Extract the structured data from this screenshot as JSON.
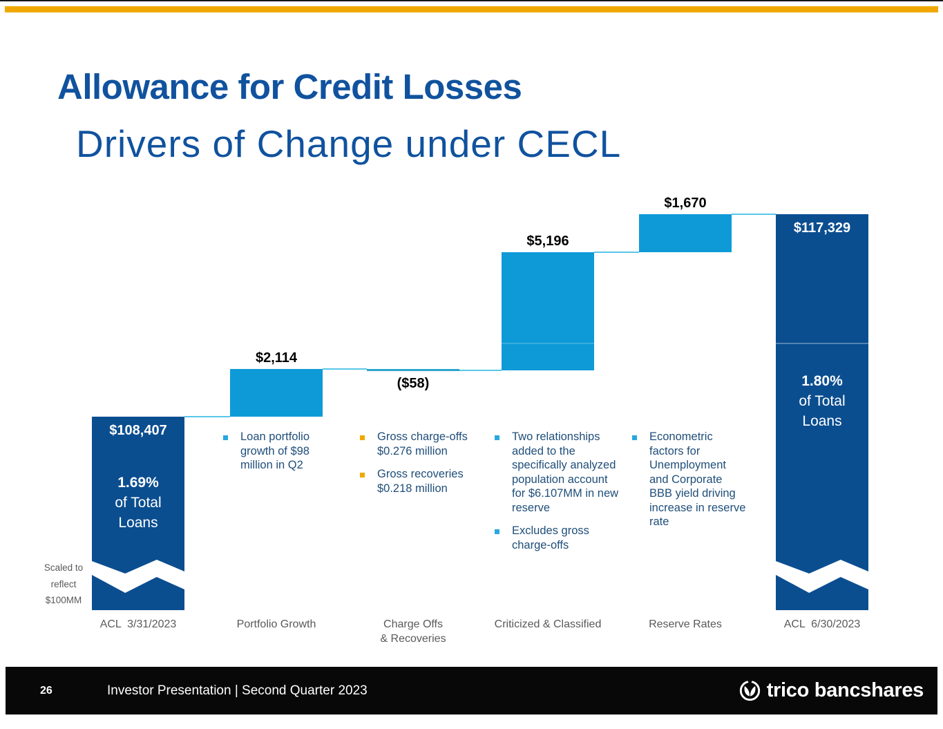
{
  "slide": {
    "title": "Allowance for Credit Losses",
    "subtitle": "Drivers of Change under CECL",
    "scale_note": "Scaled to\nreflect\n$100MM"
  },
  "colors": {
    "accent": "#F0A800",
    "title_blue": "#10529E",
    "note_text": "#1F4E79",
    "label_gray": "#595959",
    "total_bar": "#0B4E90",
    "delta_bar": "#0E9AD7",
    "thin_bar": "#2BA6CB",
    "connector": "#58C6EA",
    "bullet_blue": "#29A8E0",
    "bullet_orange": "#F0A800",
    "footer_bg": "#080808",
    "in_bar_label": "#FFFFFF",
    "outside_label": "#000000"
  },
  "chart_data": {
    "type": "bar",
    "subtype": "waterfall",
    "title": "Allowance for Credit Losses — Drivers of Change under CECL",
    "axis_break_note": "Scaled to reflect $100MM",
    "categories": [
      "ACL  3/31/2023",
      "Portfolio Growth",
      "Charge Offs\n& Recoveries",
      "Criticized & Classified",
      "Reserve Rates",
      "ACL  6/30/2023"
    ],
    "steps": [
      {
        "category": "ACL  3/31/2023",
        "kind": "total",
        "value": 108407,
        "label": "$108,407",
        "sublabel": "1.69%\nof Total\nLoans"
      },
      {
        "category": "Portfolio Growth",
        "kind": "delta",
        "value": 2114,
        "label": "$2,114"
      },
      {
        "category": "Charge Offs\n& Recoveries",
        "kind": "delta",
        "value": -58,
        "label": "($58)"
      },
      {
        "category": "Criticized & Classified",
        "kind": "delta",
        "value": 5196,
        "label": "$5,196"
      },
      {
        "category": "Reserve Rates",
        "kind": "delta",
        "value": 1670,
        "label": "$1,670"
      },
      {
        "category": "ACL  6/30/2023",
        "kind": "total",
        "value": 117329,
        "label": "$117,329",
        "sublabel": "1.80%\nof Total\nLoans"
      }
    ],
    "cumulative_levels": [
      108407,
      110521,
      110463,
      115659,
      117329,
      117329
    ]
  },
  "notes": {
    "columns": [
      {
        "under": "Portfolio Growth",
        "bullet_color": "#29A8E0",
        "items": [
          "Loan portfolio growth of $98 million in Q2"
        ]
      },
      {
        "under": "Charge Offs & Recoveries",
        "bullet_color": "#F0A800",
        "items": [
          "Gross charge-offs $0.276 million",
          "Gross recoveries $0.218 million"
        ]
      },
      {
        "under": "Criticized & Classified",
        "bullet_color": "#29A8E0",
        "items": [
          "Two relationships added to the specifically analyzed population account for $6.107MM in new reserve",
          "Excludes gross charge-offs"
        ]
      },
      {
        "under": "Reserve Rates",
        "bullet_color": "#29A8E0",
        "items": [
          "Econometric factors for Unemployment and Corporate BBB yield driving increase in reserve rate"
        ]
      }
    ]
  },
  "footer": {
    "page_number": "26",
    "text": "Investor Presentation | Second Quarter 2023",
    "logo_text": "trico bancshares"
  }
}
